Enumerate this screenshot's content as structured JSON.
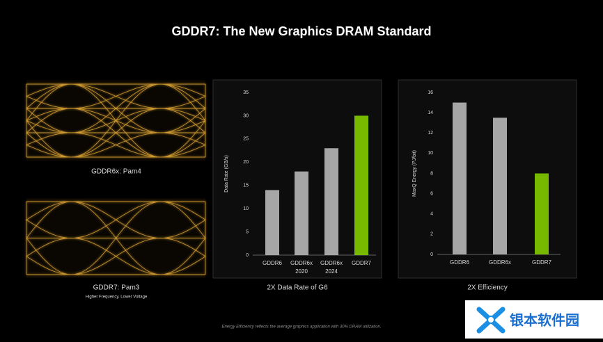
{
  "title": "GDDR7: The New Graphics DRAM Standard",
  "eye_diagrams": [
    {
      "caption": "GDDR6x: Pam4",
      "levels": 4
    },
    {
      "caption": "GDDR7: Pam3",
      "subcaption": "Higher Frequency, Lower Voltage",
      "levels": 3
    }
  ],
  "chart_data": [
    {
      "type": "bar",
      "caption": "2X Data Rate of G6",
      "y_label": "Data Rate (GB/s)",
      "categories": [
        "GDDR6",
        "GDDR6x",
        "GDDR6x",
        "GDDR7"
      ],
      "category_sublabels": [
        null,
        "2020",
        "2024",
        null
      ],
      "values": [
        14,
        18,
        23,
        30
      ],
      "colors": [
        "#a6a6a6",
        "#a6a6a6",
        "#a6a6a6",
        "#76b900"
      ],
      "ylim": [
        0,
        35
      ],
      "yticks": [
        0,
        5,
        10,
        15,
        20,
        25,
        30,
        35
      ]
    },
    {
      "type": "bar",
      "caption": "2X Efficiency",
      "y_label": "MaxQ Energy (PJ/bit)",
      "categories": [
        "GDDR6",
        "GDDR6x",
        "GDDR7"
      ],
      "values": [
        15,
        13.5,
        8
      ],
      "colors": [
        "#a6a6a6",
        "#a6a6a6",
        "#76b900"
      ],
      "ylim": [
        0,
        16
      ],
      "yticks": [
        0,
        2,
        4,
        6,
        8,
        10,
        12,
        14,
        16
      ]
    }
  ],
  "footnote": "Energy Efficiency reflects the average graphics application with 30% DRAM utilization.",
  "watermark": "银本软件园"
}
